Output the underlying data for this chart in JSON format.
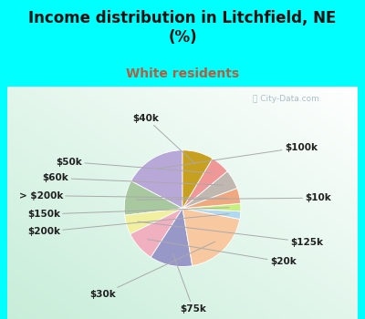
{
  "title": "Income distribution in Litchfield, NE\n(%)",
  "subtitle": "White residents",
  "bg_cyan": "#00FFFF",
  "bg_chart_color": "#e0f0e8",
  "labels": [
    "$100k",
    "$10k",
    "$125k",
    "$20k",
    "$75k",
    "$30k",
    "$200k",
    "$150k",
    "> $200k",
    "$60k",
    "$50k",
    "$40k"
  ],
  "sizes": [
    16,
    9,
    5,
    8,
    11,
    18,
    2,
    2,
    4,
    5,
    5,
    8
  ],
  "colors": [
    "#b8a8d8",
    "#a8c8a0",
    "#f0f0a0",
    "#f0b0c0",
    "#9898c8",
    "#f8c8a0",
    "#b0d8f0",
    "#c8f080",
    "#f0a880",
    "#c0b8b0",
    "#f09898",
    "#c8a020"
  ],
  "title_fontsize": 12,
  "subtitle_fontsize": 10,
  "subtitle_color": "#b06040",
  "label_fontsize": 7.5,
  "label_color": "#202020",
  "watermark": "ⓘ City-Data.com",
  "watermark_color": "#a0b8c0"
}
